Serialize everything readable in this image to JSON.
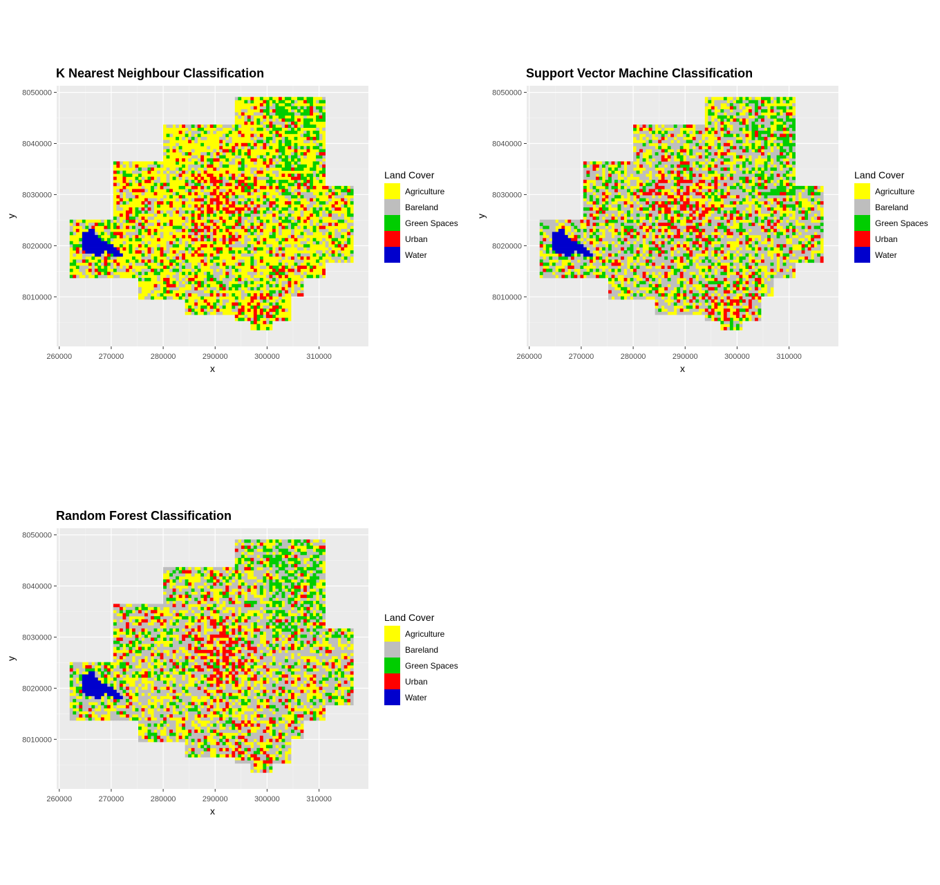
{
  "legend": {
    "title": "Land Cover",
    "items": [
      {
        "label": "Agriculture",
        "color": "#FFFF00"
      },
      {
        "label": "Bareland",
        "color": "#BEBEBE"
      },
      {
        "label": "Green Spaces",
        "color": "#00CD00"
      },
      {
        "label": "Urban",
        "color": "#FF0000"
      },
      {
        "label": "Water",
        "color": "#0000CD"
      }
    ]
  },
  "chart_data": [
    {
      "type": "heatmap",
      "title": "K Nearest Neighbour Classification",
      "xlabel": "x",
      "ylabel": "y",
      "xticks": [
        260000,
        270000,
        280000,
        290000,
        300000,
        310000
      ],
      "yticks": [
        8010000,
        8020000,
        8030000,
        8040000,
        8050000
      ],
      "xlim": [
        259500,
        319500
      ],
      "ylim": [
        8000300,
        8051300
      ],
      "grid": true,
      "legend_position": "right",
      "class_weights": {
        "Agriculture": 0.55,
        "Bareland": 0.22,
        "Green Spaces": 0.13,
        "Urban": 0.1,
        "Water": 0.0
      }
    },
    {
      "type": "heatmap",
      "title": "Support Vector Machine Classification",
      "xlabel": "x",
      "ylabel": "y",
      "xticks": [
        260000,
        270000,
        280000,
        290000,
        300000,
        310000
      ],
      "yticks": [
        8010000,
        8020000,
        8030000,
        8040000,
        8050000
      ],
      "xlim": [
        259500,
        319500
      ],
      "ylim": [
        8000300,
        8051300
      ],
      "grid": true,
      "legend_position": "right",
      "class_weights": {
        "Agriculture": 0.33,
        "Bareland": 0.45,
        "Green Spaces": 0.14,
        "Urban": 0.08,
        "Water": 0.0
      }
    },
    {
      "type": "heatmap",
      "title": "Random Forest Classification",
      "xlabel": "x",
      "ylabel": "y",
      "xticks": [
        260000,
        270000,
        280000,
        290000,
        300000,
        310000
      ],
      "yticks": [
        8010000,
        8020000,
        8030000,
        8040000,
        8050000
      ],
      "xlim": [
        259500,
        319500
      ],
      "ylim": [
        8000300,
        8051300
      ],
      "grid": true,
      "legend_position": "right",
      "class_weights": {
        "Agriculture": 0.36,
        "Bareland": 0.44,
        "Green Spaces": 0.12,
        "Urban": 0.08,
        "Water": 0.0
      }
    }
  ]
}
